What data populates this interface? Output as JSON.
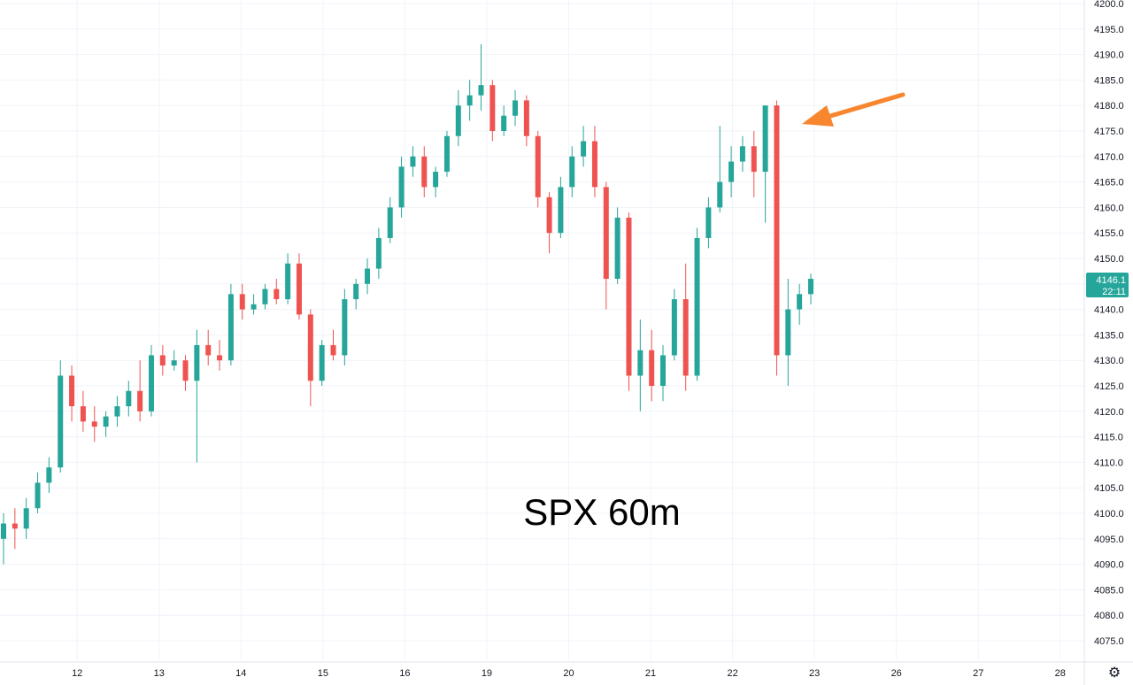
{
  "title": "SPX 60m",
  "colors": {
    "up": "#26a69a",
    "down": "#ef5350",
    "grid": "#f0f3fa",
    "axis_text": "#131722",
    "arrow": "#f7862e",
    "badge": "#26a69a"
  },
  "price_badge": {
    "price": "4146.1",
    "time": "22:11"
  },
  "settings_icon": "gear-icon",
  "chart_data": {
    "type": "candlestick",
    "grid": true,
    "y_axis_position": "right",
    "ylim": [
      4072.0,
      4200.0
    ],
    "y_ticks": [
      "4075.0",
      "4080.0",
      "4085.0",
      "4090.0",
      "4095.0",
      "4100.0",
      "4105.0",
      "4110.0",
      "4115.0",
      "4120.0",
      "4125.0",
      "4130.0",
      "4135.0",
      "4140.0",
      "4145.0",
      "4150.0",
      "4155.0",
      "4160.0",
      "4165.0",
      "4170.0",
      "4175.0",
      "4180.0",
      "4185.0",
      "4190.0",
      "4195.0",
      "4200.0"
    ],
    "x_ticks": [
      {
        "label": "12",
        "index": 7
      },
      {
        "label": "13",
        "index": 22
      },
      {
        "label": "14",
        "index": 37
      },
      {
        "label": "15",
        "index": 52
      },
      {
        "label": "16",
        "index": 67
      },
      {
        "label": "19",
        "index": 82
      },
      {
        "label": "20",
        "index": 97
      },
      {
        "label": "21",
        "index": 112
      },
      {
        "label": "22",
        "index": 127
      },
      {
        "label": "23",
        "index": 142
      },
      {
        "label": "26",
        "index": 157
      },
      {
        "label": "27",
        "index": 172
      },
      {
        "label": "28",
        "index": 187
      }
    ],
    "annotation": {
      "type": "arrow",
      "points_to_index": 141,
      "price": 4178
    },
    "candles": [
      [
        4095,
        4100,
        4090,
        4098
      ],
      [
        4098,
        4101,
        4093,
        4097
      ],
      [
        4097,
        4103,
        4095,
        4101
      ],
      [
        4101,
        4108,
        4100,
        4106
      ],
      [
        4106,
        4111,
        4104,
        4109
      ],
      [
        4109,
        4130,
        4108,
        4127
      ],
      [
        4127,
        4129,
        4118,
        4121
      ],
      [
        4121,
        4124,
        4116,
        4118
      ],
      [
        4118,
        4121,
        4114,
        4117
      ],
      [
        4117,
        4120,
        4115,
        4119
      ],
      [
        4119,
        4123,
        4117,
        4121
      ],
      [
        4121,
        4126,
        4119,
        4124
      ],
      [
        4124,
        4130,
        4118,
        4120
      ],
      [
        4120,
        4133,
        4119,
        4131
      ],
      [
        4131,
        4133,
        4127,
        4129
      ],
      [
        4129,
        4132,
        4128,
        4130
      ],
      [
        4130,
        4131,
        4124,
        4126
      ],
      [
        4126,
        4136,
        4110,
        4133
      ],
      [
        4133,
        4136,
        4129,
        4131
      ],
      [
        4131,
        4134,
        4128,
        4130
      ],
      [
        4130,
        4145,
        4129,
        4143
      ],
      [
        4143,
        4145,
        4138,
        4140
      ],
      [
        4140,
        4143,
        4139,
        4141
      ],
      [
        4141,
        4145,
        4140,
        4144
      ],
      [
        4144,
        4146,
        4141,
        4142
      ],
      [
        4142,
        4151,
        4141,
        4149
      ],
      [
        4149,
        4151,
        4138,
        4139
      ],
      [
        4139,
        4140,
        4121,
        4126
      ],
      [
        4126,
        4134,
        4125,
        4133
      ],
      [
        4133,
        4136,
        4130,
        4131
      ],
      [
        4131,
        4144,
        4129,
        4142
      ],
      [
        4142,
        4146,
        4140,
        4145
      ],
      [
        4145,
        4150,
        4143,
        4148
      ],
      [
        4148,
        4156,
        4146,
        4154
      ],
      [
        4154,
        4162,
        4153,
        4160
      ],
      [
        4160,
        4170,
        4158,
        4168
      ],
      [
        4168,
        4172,
        4166,
        4170
      ],
      [
        4170,
        4172,
        4162,
        4164
      ],
      [
        4164,
        4168,
        4162,
        4167
      ],
      [
        4167,
        4175,
        4166,
        4174
      ],
      [
        4174,
        4183,
        4172,
        4180
      ],
      [
        4180,
        4185,
        4177,
        4182
      ],
      [
        4182,
        4192,
        4179,
        4184
      ],
      [
        4184,
        4185,
        4173,
        4175
      ],
      [
        4175,
        4180,
        4174,
        4178
      ],
      [
        4178,
        4183,
        4176,
        4181
      ],
      [
        4181,
        4182,
        4172,
        4174
      ],
      [
        4174,
        4175,
        4160,
        4162
      ],
      [
        4162,
        4163,
        4151,
        4155
      ],
      [
        4155,
        4166,
        4154,
        4164
      ],
      [
        4164,
        4172,
        4162,
        4170
      ],
      [
        4170,
        4176,
        4168,
        4173
      ],
      [
        4173,
        4176,
        4162,
        4164
      ],
      [
        4164,
        4165,
        4140,
        4146
      ],
      [
        4146,
        4160,
        4145,
        4158
      ],
      [
        4158,
        4159,
        4124,
        4127
      ],
      [
        4127,
        4138,
        4120,
        4132
      ],
      [
        4132,
        4136,
        4122,
        4125
      ],
      [
        4125,
        4133,
        4122,
        4131
      ],
      [
        4131,
        4144,
        4130,
        4142
      ],
      [
        4142,
        4149,
        4124,
        4127
      ],
      [
        4127,
        4156,
        4126,
        4154
      ],
      [
        4154,
        4162,
        4152,
        4160
      ],
      [
        4160,
        4176,
        4159,
        4165
      ],
      [
        4165,
        4172,
        4162,
        4169
      ],
      [
        4169,
        4174,
        4167,
        4172
      ],
      [
        4172,
        4175,
        4162,
        4167
      ],
      [
        4167,
        4180,
        4157,
        4180
      ],
      [
        4180,
        4181,
        4127,
        4131
      ],
      [
        4131,
        4146,
        4125,
        4140
      ],
      [
        4140,
        4145,
        4137,
        4143
      ],
      [
        4143,
        4147,
        4141,
        4146
      ]
    ]
  }
}
